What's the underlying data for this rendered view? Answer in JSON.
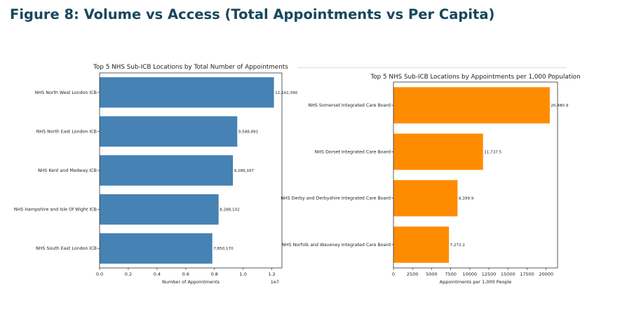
{
  "figure_title": "Figure 8: Volume vs Access (Total Appointments vs Per Capita)",
  "chart_data": [
    {
      "type": "bar",
      "orientation": "horizontal",
      "title": "Top 5 NHS Sub-ICB Locations by Total Number of Appointments",
      "xlabel": "Number of Appointments",
      "ylabel": "",
      "x_scale_note": "1e7",
      "categories": [
        "NHS North West London ICB",
        "NHS North East London ICB",
        "NHS Kent and Medway ICB",
        "NHS Hampshire and Isle Of Wight ICB",
        "NHS South East London ICB"
      ],
      "values": [
        12142390,
        9588891,
        9286167,
        8288102,
        7850170
      ],
      "value_labels": [
        "12,142,390",
        "9,588,891",
        "9,286,167",
        "8,288,102",
        "7,850,170"
      ],
      "xlim": [
        0,
        12700000
      ],
      "xticks": [
        0,
        2000000,
        4000000,
        6000000,
        8000000,
        10000000,
        12000000
      ],
      "xtick_labels": [
        "0.0",
        "0.2",
        "0.4",
        "0.6",
        "0.8",
        "1.0",
        "1.2"
      ],
      "color": "#4682b4",
      "grid": false
    },
    {
      "type": "bar",
      "orientation": "horizontal",
      "title": "Top 5 NHS Sub-ICB Locations by Appointments per 1,000 Population",
      "xlabel": "Appointments per 1,000 People",
      "ylabel": "",
      "categories": [
        "NHS Somerset Integrated Care Board",
        "NHS Dorset Integrated Care Board",
        "NHS Derby and Derbyshire Integrated Care Board",
        "NHS Norfolk and Waveney Integrated Care Board"
      ],
      "values": [
        20480.9,
        11737.5,
        8399.9,
        7272.2
      ],
      "value_labels": [
        "20,480.9",
        "11,737.5",
        "8,399.9",
        "7,272.2"
      ],
      "xlim": [
        0,
        21500
      ],
      "xticks": [
        0,
        2500,
        5000,
        7500,
        10000,
        12500,
        15000,
        17500,
        20000
      ],
      "xtick_labels": [
        "0",
        "2500",
        "5000",
        "7500",
        "10000",
        "12500",
        "15000",
        "17500",
        "20000"
      ],
      "color": "#ff8c00",
      "grid": false
    }
  ]
}
